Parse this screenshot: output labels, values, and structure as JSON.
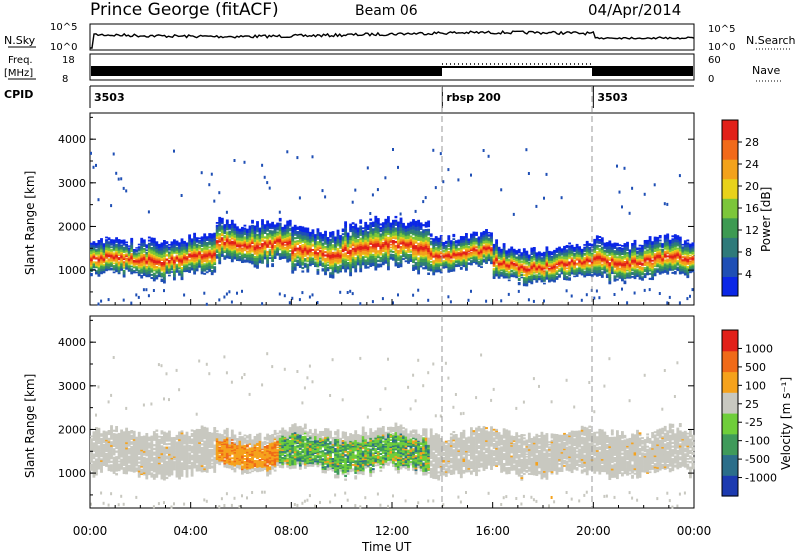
{
  "header": {
    "station": "Prince George (fitACF)",
    "beam": "Beam 06",
    "date": "04/Apr/2014"
  },
  "top_panels": {
    "nsky_label": "N.Sky",
    "nsky_top": "10^5",
    "nsky_bottom": "10^0",
    "nsearch_label": "N.Search",
    "nsearch_top": "10^5",
    "nsearch_bottom": "10^0",
    "freq_label": "Freq.",
    "freq_unit": "[MHz]",
    "freq_top": "18",
    "freq_bottom": "8",
    "nave_top": "60",
    "nave_bottom": "0",
    "nave_label": "Nave",
    "cpid_label": "CPID",
    "cpid_segments": [
      {
        "label": "3503",
        "start_h": 0,
        "end_h": 14
      },
      {
        "label": "rbsp  200",
        "start_h": 14,
        "end_h": 20
      },
      {
        "label": "3503",
        "start_h": 20,
        "end_h": 24
      }
    ]
  },
  "chart_data": [
    {
      "type": "heatmap",
      "name": "Power",
      "ylabel": "Slant Range [km]",
      "ylim": [
        200,
        4600
      ],
      "yticks": [
        "1000",
        "2000",
        "3000",
        "4000"
      ],
      "colorbar_label": "Power [dB]",
      "colorbar_ticks": [
        "4",
        "8",
        "12",
        "16",
        "20",
        "24",
        "28"
      ],
      "colorbar_colors": [
        "#0b27e6",
        "#1f4fb5",
        "#2f7a7a",
        "#3d9a52",
        "#7cc63a",
        "#e8d21a",
        "#f3a21b",
        "#f26a1a",
        "#e22019"
      ],
      "bands": [
        {
          "start_h": 0.0,
          "end_h": 2.0,
          "center_km": 1250,
          "halfwidth_km": 350
        },
        {
          "start_h": 2.0,
          "end_h": 5.0,
          "center_km": 1300,
          "halfwidth_km": 400
        },
        {
          "start_h": 5.0,
          "end_h": 8.0,
          "center_km": 1650,
          "halfwidth_km": 450
        },
        {
          "start_h": 8.0,
          "end_h": 10.0,
          "center_km": 1400,
          "halfwidth_km": 450
        },
        {
          "start_h": 10.0,
          "end_h": 13.5,
          "center_km": 1550,
          "halfwidth_km": 500
        },
        {
          "start_h": 13.5,
          "end_h": 16.0,
          "center_km": 1400,
          "halfwidth_km": 350
        },
        {
          "start_h": 16.0,
          "end_h": 20.0,
          "center_km": 1150,
          "halfwidth_km": 350
        },
        {
          "start_h": 20.0,
          "end_h": 24.0,
          "center_km": 1250,
          "halfwidth_km": 400
        }
      ]
    },
    {
      "type": "heatmap",
      "name": "Velocity",
      "ylabel": "Slant Range [km]",
      "ylim": [
        200,
        4600
      ],
      "yticks": [
        "1000",
        "2000",
        "3000",
        "4000"
      ],
      "colorbar_label": "Velocity [m s⁻¹]",
      "colorbar_ticks": [
        "1000",
        "500",
        "100",
        "25",
        "-25",
        "-100",
        "-500",
        "-1000"
      ],
      "colorbar_colors": [
        "#1c3ab0",
        "#2b6e8a",
        "#3f9a5a",
        "#6fce3a",
        "#c8c8c0",
        "#f5a21c",
        "#f06a18",
        "#e22019"
      ],
      "bands": [
        {
          "start_h": 0.0,
          "end_h": 5.0,
          "center_km": 1450,
          "halfwidth_km": 450,
          "color": "ground"
        },
        {
          "start_h": 5.0,
          "end_h": 7.5,
          "center_km": 1500,
          "halfwidth_km": 400,
          "color": "orange"
        },
        {
          "start_h": 7.5,
          "end_h": 13.5,
          "center_km": 1500,
          "halfwidth_km": 450,
          "color": "green"
        },
        {
          "start_h": 13.5,
          "end_h": 24.0,
          "center_km": 1450,
          "halfwidth_km": 450,
          "color": "ground"
        }
      ]
    }
  ],
  "xaxis": {
    "label": "Time UT",
    "ticks": [
      "00:00",
      "04:00",
      "08:00",
      "12:00",
      "16:00",
      "20:00",
      "00:00"
    ]
  }
}
